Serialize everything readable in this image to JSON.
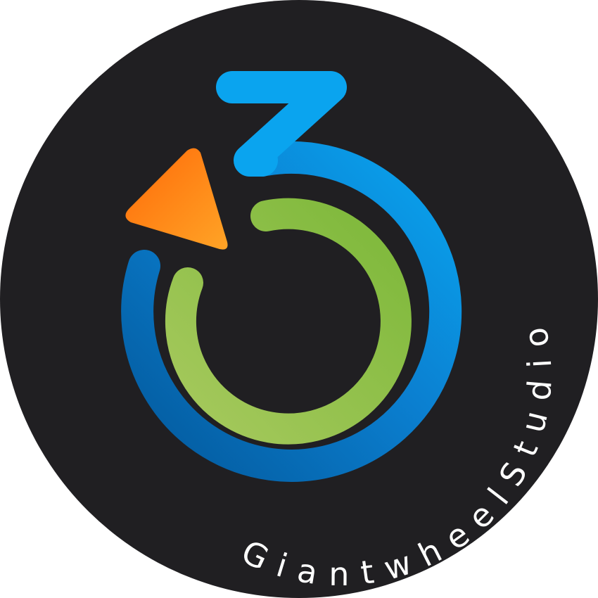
{
  "logo": {
    "ring_text": "GiantwheelStudio",
    "colors": {
      "background_disc": "#201f22",
      "blue_light": "#0aa4ef",
      "blue_dark": "#03599c",
      "green_light": "#a6c95d",
      "green_dark": "#7db83a",
      "orange_light": "#ffa426",
      "orange_dark": "#ff6a09",
      "text": "#ffffff"
    }
  }
}
